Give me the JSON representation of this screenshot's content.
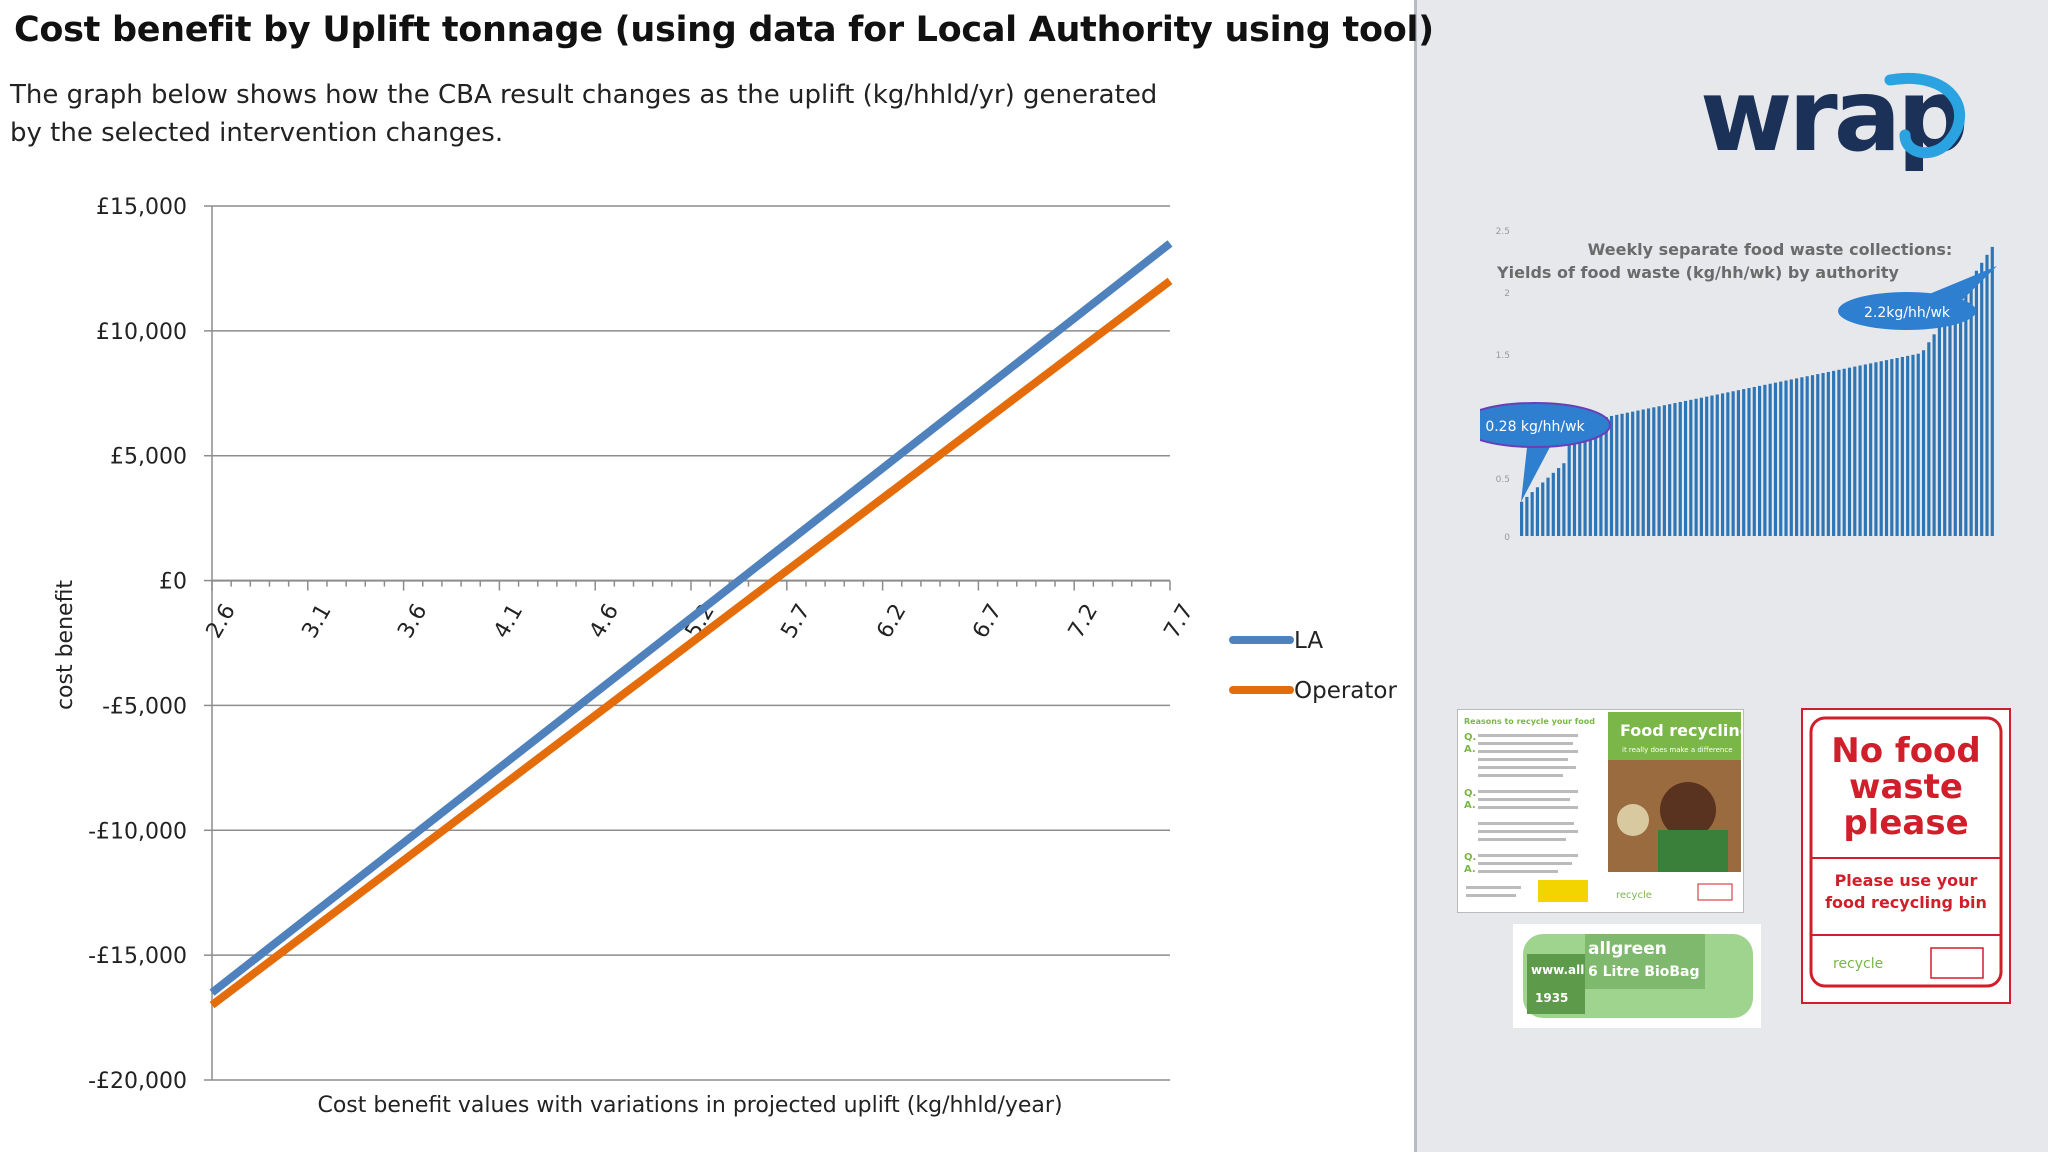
{
  "page": {
    "title": "Cost benefit by Uplift tonnage (using data for Local Authority using tool)",
    "description": "The graph below shows how the CBA result changes as the uplift (kg/hhld/yr) generated by the selected intervention changes."
  },
  "chart_data": {
    "type": "line",
    "title": "",
    "xlabel": "Cost benefit values with variations in projected uplift (kg/hhld/year)",
    "ylabel": "cost benefit",
    "categories": [
      "2.6",
      "3.1",
      "3.6",
      "4.1",
      "4.6",
      "5.2",
      "5.7",
      "6.2",
      "6.7",
      "7.2",
      "7.7"
    ],
    "x": [
      2.6,
      7.7
    ],
    "ylim": [
      -20000,
      15000
    ],
    "y_ticks": [
      15000,
      10000,
      5000,
      0,
      -5000,
      -10000,
      -15000,
      -20000
    ],
    "y_tick_labels": [
      "£15,000",
      "£10,000",
      "£5,000",
      "£0",
      "-£5,000",
      "-£10,000",
      "-£15,000",
      "-£20,000"
    ],
    "grid": true,
    "legend_position": "right",
    "series": [
      {
        "name": "LA",
        "color": "#4f81bd",
        "x": [
          2.6,
          7.7
        ],
        "values": [
          -16500,
          13500
        ]
      },
      {
        "name": "Operator",
        "color": "#e46c0a",
        "x": [
          2.6,
          7.7
        ],
        "values": [
          -17000,
          12000
        ]
      }
    ]
  },
  "sidebar": {
    "logo_text": "wrap",
    "logo_color": "#1c3158",
    "logo_accent": "#2ba3e0",
    "yield_chart": {
      "title_line1": "Weekly separate food waste collections:",
      "title_line2": "Yields of food waste (kg/hh/wk) by authority",
      "callout_low": "0.28 kg/hh/wk",
      "callout_high": "2.2kg/hh/wk",
      "axis_labels": [
        "2.5",
        "2",
        "1.5",
        "1",
        "0.5",
        "0"
      ],
      "bar_color": "#2e75b6"
    },
    "leaflet": {
      "heading": "Reasons to recycle your food",
      "banner": "Food recycling",
      "subtitle": "it really does make a difference",
      "brand": "recycle"
    },
    "bag": {
      "brand": "allgreen",
      "line1": "6 Litre BioBag",
      "side": "www.all-g",
      "code": "1935"
    },
    "poster": {
      "line1": "No food",
      "line2": "waste",
      "line3": "please",
      "sub1": "Please use your",
      "sub2": "food recycling bin",
      "brand": "recycle"
    }
  }
}
